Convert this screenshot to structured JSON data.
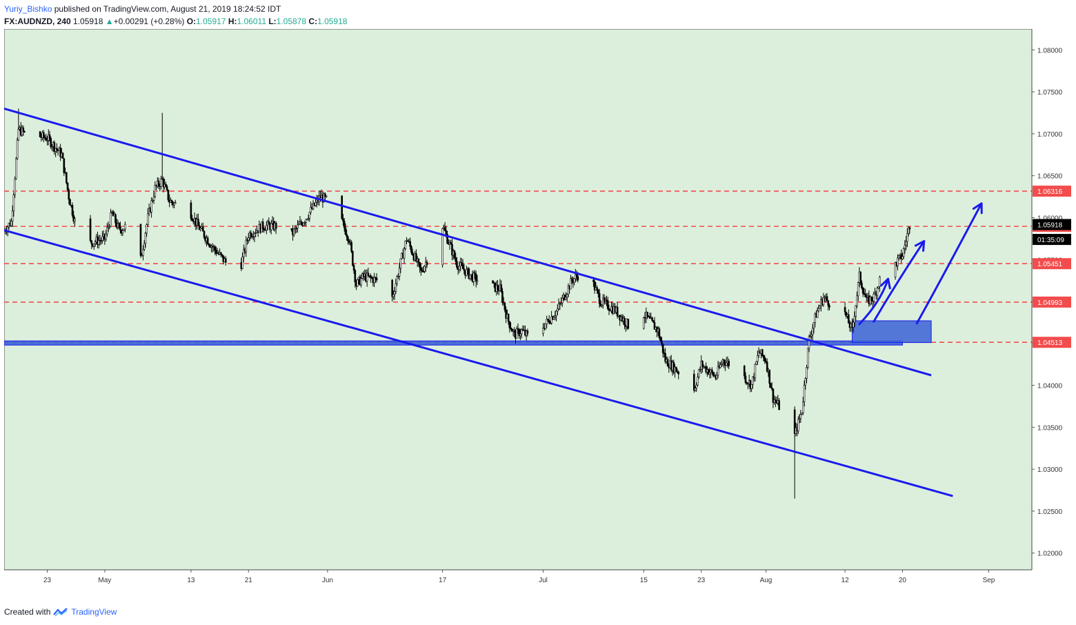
{
  "header": {
    "author": "Yuriy_Bishko",
    "published_text": "published on TradingView.com, August 21, 2019 18:24:52 IDT",
    "symbol": "FX:AUDNZD, 240",
    "last": "1.05918",
    "change_arrow": "▲",
    "change": "+0.00291 (+0.28%)",
    "o_label": "O:",
    "o": "1.05917",
    "h_label": "H:",
    "h": "1.06011",
    "l_label": "L:",
    "l": "1.05878",
    "c_label": "C:",
    "c": "1.05918"
  },
  "footer": {
    "created_with": "Created with",
    "brand": "TradingView",
    "logo_icon": "tradingview-logo-icon"
  },
  "colors": {
    "background": "#dcefdc",
    "trendline": "#1a1aee",
    "support_zone": "#3a62d6",
    "dashed_level": "#f24c4c",
    "candle": "#000000",
    "arrow": "#1a1aee"
  },
  "chart_data": {
    "type": "candlestick",
    "symbol": "FX:AUDNZD",
    "interval": "240",
    "y_axis": {
      "range": [
        1.018,
        1.0825
      ],
      "tick_labels": [
        "1.08000",
        "1.07500",
        "1.07000",
        "1.06500",
        "1.06000",
        "1.05500",
        "1.05000",
        "1.04500",
        "1.04000",
        "1.03500",
        "1.03000",
        "1.02500",
        "1.02000"
      ],
      "tick_values": [
        1.08,
        1.075,
        1.07,
        1.065,
        1.06,
        1.055,
        1.05,
        1.045,
        1.04,
        1.035,
        1.03,
        1.025,
        1.02
      ]
    },
    "x_axis": {
      "range": [
        "2019-04-17",
        "2019-09-07"
      ],
      "ticks": [
        {
          "date": "2019-04-23",
          "label": "23"
        },
        {
          "date": "2019-05-01",
          "label": "May"
        },
        {
          "date": "2019-05-13",
          "label": "13"
        },
        {
          "date": "2019-05-21",
          "label": "21"
        },
        {
          "date": "2019-06-01",
          "label": "Jun"
        },
        {
          "date": "2019-06-17",
          "label": "17"
        },
        {
          "date": "2019-07-01",
          "label": "Jul"
        },
        {
          "date": "2019-07-15",
          "label": "15"
        },
        {
          "date": "2019-07-23",
          "label": "23"
        },
        {
          "date": "2019-08-01",
          "label": "Aug"
        },
        {
          "date": "2019-08-12",
          "label": "12"
        },
        {
          "date": "2019-08-20",
          "label": "20"
        },
        {
          "date": "2019-09-01",
          "label": "Sep"
        }
      ]
    },
    "price_path": [
      [
        "2019-04-17",
        1.0585
      ],
      [
        "2019-04-18",
        1.0595
      ],
      [
        "2019-04-19",
        1.0705
      ],
      [
        "2019-04-20",
        1.07
      ],
      [
        "2019-04-23",
        1.0695
      ],
      [
        "2019-04-25",
        1.0675
      ],
      [
        "2019-04-26",
        1.0625
      ],
      [
        "2019-04-27",
        1.059
      ],
      [
        "2019-04-29",
        1.057
      ],
      [
        "2019-05-01",
        1.0575
      ],
      [
        "2019-05-02",
        1.0605
      ],
      [
        "2019-05-03",
        1.0585
      ],
      [
        "2019-05-04",
        1.059
      ],
      [
        "2019-05-06",
        1.055
      ],
      [
        "2019-05-07",
        1.06
      ],
      [
        "2019-05-08",
        1.0635
      ],
      [
        "2019-05-09",
        1.0645
      ],
      [
        "2019-05-10",
        1.062
      ],
      [
        "2019-05-13",
        1.0605
      ],
      [
        "2019-05-14",
        1.059
      ],
      [
        "2019-05-16",
        1.0565
      ],
      [
        "2019-05-18",
        1.0545
      ],
      [
        "2019-05-20",
        1.0545
      ],
      [
        "2019-05-21",
        1.058
      ],
      [
        "2019-05-23",
        1.059
      ],
      [
        "2019-05-25",
        1.059
      ],
      [
        "2019-05-27",
        1.058
      ],
      [
        "2019-05-29",
        1.06
      ],
      [
        "2019-05-31",
        1.0625
      ],
      [
        "2019-06-01",
        1.062
      ],
      [
        "2019-06-03",
        1.0595
      ],
      [
        "2019-06-04",
        1.0575
      ],
      [
        "2019-06-05",
        1.052
      ],
      [
        "2019-06-06",
        1.053
      ],
      [
        "2019-06-08",
        1.0525
      ],
      [
        "2019-06-10",
        1.0505
      ],
      [
        "2019-06-12",
        1.0575
      ],
      [
        "2019-06-14",
        1.0535
      ],
      [
        "2019-06-16",
        1.057
      ],
      [
        "2019-06-17",
        1.059
      ],
      [
        "2019-06-19",
        1.0545
      ],
      [
        "2019-06-21",
        1.053
      ],
      [
        "2019-06-23",
        1.052
      ],
      [
        "2019-06-25",
        1.0515
      ],
      [
        "2019-06-26",
        1.048
      ],
      [
        "2019-06-27",
        1.046
      ],
      [
        "2019-06-28",
        1.0465
      ],
      [
        "2019-06-30",
        1.045
      ],
      [
        "2019-07-01",
        1.047
      ],
      [
        "2019-07-03",
        1.049
      ],
      [
        "2019-07-05",
        1.0525
      ],
      [
        "2019-07-07",
        1.054
      ],
      [
        "2019-07-09",
        1.05
      ],
      [
        "2019-07-11",
        1.049
      ],
      [
        "2019-07-13",
        1.047
      ],
      [
        "2019-07-15",
        1.0485
      ],
      [
        "2019-07-17",
        1.0465
      ],
      [
        "2019-07-18",
        1.043
      ],
      [
        "2019-07-20",
        1.0415
      ],
      [
        "2019-07-22",
        1.0395
      ],
      [
        "2019-07-23",
        1.0425
      ],
      [
        "2019-07-25",
        1.041
      ],
      [
        "2019-07-26",
        1.043
      ],
      [
        "2019-07-28",
        1.042
      ],
      [
        "2019-07-30",
        1.04
      ],
      [
        "2019-07-31",
        1.044
      ],
      [
        "2019-08-01",
        1.043
      ],
      [
        "2019-08-02",
        1.0385
      ],
      [
        "2019-08-04",
        1.036
      ],
      [
        "2019-08-05",
        1.034
      ],
      [
        "2019-08-06",
        1.037
      ],
      [
        "2019-08-07",
        1.0455
      ],
      [
        "2019-08-08",
        1.0485
      ],
      [
        "2019-08-09",
        1.0505
      ],
      [
        "2019-08-11",
        1.049
      ],
      [
        "2019-08-12",
        1.0485
      ],
      [
        "2019-08-13",
        1.0465
      ],
      [
        "2019-08-14",
        1.053
      ],
      [
        "2019-08-15",
        1.05
      ],
      [
        "2019-08-16",
        1.0505
      ],
      [
        "2019-08-17",
        1.053
      ],
      [
        "2019-08-19",
        1.0545
      ],
      [
        "2019-08-20",
        1.0555
      ],
      [
        "2019-08-21",
        1.05918
      ]
    ],
    "extreme_wicks": [
      {
        "date": "2019-04-19",
        "high": 1.073
      },
      {
        "date": "2019-05-09",
        "high": 1.0725
      },
      {
        "date": "2019-08-05",
        "low": 1.0265
      }
    ],
    "horizontal_levels": [
      {
        "value": 1.06316,
        "label": "1.06316"
      },
      {
        "value": 1.05896,
        "label": "1.05896"
      },
      {
        "value": 1.05451,
        "label": "1.05451"
      },
      {
        "value": 1.04993,
        "label": "1.04993"
      },
      {
        "value": 1.04513,
        "label": "1.04513"
      }
    ],
    "price_tags": [
      {
        "value": 1.05918,
        "label": "1.05918",
        "style": "dark"
      },
      {
        "value": 1.0574,
        "label": "01:35:09",
        "style": "dark"
      }
    ],
    "trendlines": [
      {
        "from": [
          "2019-04-17",
          1.073
        ],
        "to": [
          "2019-08-24",
          1.0412
        ]
      },
      {
        "from": [
          "2019-04-17",
          1.0585
        ],
        "to": [
          "2019-08-27",
          1.0268
        ]
      }
    ],
    "support_zone": {
      "from": "2019-04-17",
      "to": "2019-08-20",
      "bottom": 1.0448,
      "top": 1.0453
    },
    "target_zone": {
      "from": "2019-08-13",
      "to": "2019-08-24",
      "bottom": 1.0451,
      "top": 1.0477
    },
    "arrows": [
      {
        "from": [
          "2019-08-14",
          1.0473
        ],
        "via": [
          "2019-08-17",
          1.05
        ],
        "to": [
          "2019-08-18",
          1.0527
        ]
      },
      {
        "from": [
          "2019-08-16",
          1.0476
        ],
        "via": [
          "2019-08-19",
          1.052
        ],
        "to": [
          "2019-08-23",
          1.0572
        ]
      },
      {
        "from": [
          "2019-08-22",
          1.0474
        ],
        "via": [
          "2019-08-25",
          1.052
        ],
        "to": [
          "2019-08-31",
          1.0617
        ]
      }
    ]
  }
}
